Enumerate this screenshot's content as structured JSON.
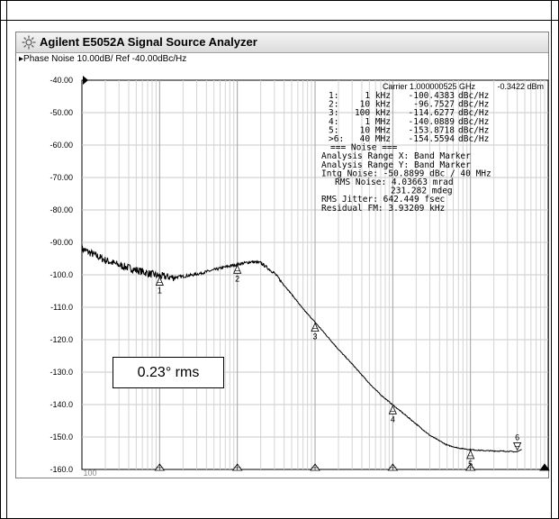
{
  "window": {
    "title": "Agilent E5052A Signal Source Analyzer"
  },
  "trace_header": "Phase Noise 10.00dB/ Ref -40.00dBc/Hz",
  "carrier": {
    "frequency": "Carrier 1.000000525 GHz",
    "power": "-0.3422 dBm"
  },
  "markers": [
    {
      "id": "1:",
      "freq": "1 kHz",
      "value": "-100.4383",
      "unit": "dBc/Hz"
    },
    {
      "id": "2:",
      "freq": "10 kHz",
      "value": "-96.7527",
      "unit": "dBc/Hz"
    },
    {
      "id": "3:",
      "freq": "100 kHz",
      "value": "-114.6277",
      "unit": "dBc/Hz"
    },
    {
      "id": "4:",
      "freq": "1 MHz",
      "value": "-140.0889",
      "unit": "dBc/Hz"
    },
    {
      "id": "5:",
      "freq": "10 MHz",
      "value": "-153.8718",
      "unit": "dBc/Hz"
    },
    {
      "id": ">6:",
      "freq": "40 MHz",
      "value": "-154.5594",
      "unit": "dBc/Hz"
    }
  ],
  "noise_summary": [
    "=== Noise ===",
    "Analysis Range X: Band Marker",
    "Analysis Range Y: Band Marker",
    "Intg Noise: -50.8899 dBc / 40 MHz",
    "RMS Noise: 4.03663 mrad",
    "231.282 mdeg",
    "RMS Jitter: 642.449 fsec",
    "Residual FM: 3.93209 kHz"
  ],
  "annotation": "0.23° rms",
  "chart_data": {
    "type": "line",
    "xscale": "log",
    "x_unit": "Hz",
    "xlim": [
      100,
      100000000
    ],
    "ylim": [
      -160,
      -40
    ],
    "y_tick_labels": [
      "-40.00",
      "-50.00",
      "-60.00",
      "-70.00",
      "-80.00",
      "-90.00",
      "-100.0",
      "-110.0",
      "-120.0",
      "-130.0",
      "-140.0",
      "-150.0",
      "-160.0"
    ],
    "x_tick_labels": [
      "100"
    ],
    "grid": true,
    "series": [
      {
        "x": [
          100,
          150,
          200,
          300,
          500,
          700,
          1000,
          1500,
          2000,
          3000,
          5000,
          7000,
          10000,
          15000,
          20000,
          30000,
          50000,
          70000,
          100000,
          150000,
          200000,
          300000,
          500000,
          700000,
          1000000,
          1500000,
          2000000,
          3000000,
          5000000,
          7000000,
          10000000,
          15000000,
          20000000,
          30000000,
          40000000
        ],
        "y": [
          -92,
          -94,
          -95.5,
          -97,
          -98.5,
          -99.5,
          -100.4,
          -100.8,
          -100.5,
          -99.8,
          -98.5,
          -97.6,
          -96.8,
          -96,
          -96.3,
          -99.5,
          -106,
          -110.5,
          -114.6,
          -119.5,
          -123,
          -127.5,
          -133.5,
          -137,
          -140.1,
          -143.5,
          -146,
          -149.5,
          -152.5,
          -153.4,
          -153.9,
          -154.2,
          -154.3,
          -154.4,
          -154.6
        ]
      }
    ],
    "marker_points": [
      {
        "label": "1",
        "x": 1000,
        "y": -100.4383
      },
      {
        "label": "2",
        "x": 10000,
        "y": -96.7527
      },
      {
        "label": "3",
        "x": 100000,
        "y": -114.6277
      },
      {
        "label": "4",
        "x": 1000000,
        "y": -140.0889
      },
      {
        "label": "5",
        "x": 10000000,
        "y": -153.8718
      },
      {
        "label": "6",
        "x": 40000000,
        "y": -154.5594
      }
    ]
  }
}
